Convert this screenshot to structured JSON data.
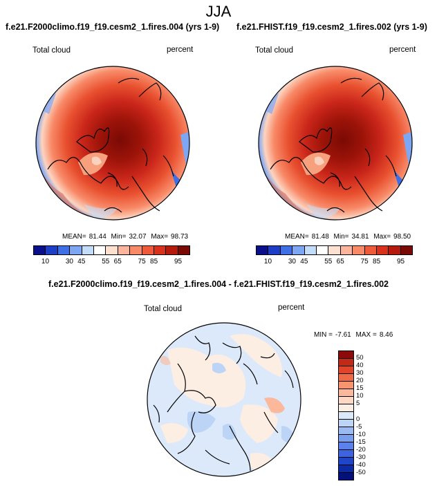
{
  "page": {
    "season": "JJA",
    "diff_title": "f.e21.F2000climo.f19_f19.cesm2_1.fires.004 - f.e21.FHIST.f19_f19.cesm2_1.fires.002"
  },
  "panels": [
    {
      "title": "f.e21.F2000climo.f19_f19.cesm2_1.fires.004 (yrs 1-9)",
      "left_label": "Total cloud",
      "right_label": "percent",
      "mean_label": "MEAN=",
      "mean_value": "81.44",
      "min_label": "Min=",
      "min_value": "32.07",
      "max_label": "Max=",
      "max_value": "98.73"
    },
    {
      "title": "f.e21.FHIST.f19_f19.cesm2_1.fires.002 (yrs 1-9)",
      "left_label": "Total cloud",
      "right_label": "percent",
      "mean_label": "MEAN=",
      "mean_value": "81.48",
      "min_label": "Min=",
      "min_value": "34.81",
      "max_label": "Max=",
      "max_value": "98.50"
    }
  ],
  "diff_panel": {
    "left_label": "Total cloud",
    "right_label": "percent",
    "min_label": "MIN =",
    "min_value": "-7.61",
    "max_label": "MAX =",
    "max_value": "8.46"
  },
  "colorbar_main": {
    "colors": [
      "#0a0f8c",
      "#1c3fc6",
      "#3f6fe4",
      "#7da6f3",
      "#c3dcf9",
      "#ffffff",
      "#fde0d0",
      "#fcb59c",
      "#f88a68",
      "#ee5a3a",
      "#d9311c",
      "#b51a0d",
      "#7a0a05"
    ],
    "tick_labels": [
      "10",
      "30",
      "45",
      "55",
      "65",
      "75",
      "85",
      "95"
    ]
  },
  "colorbar_diff": {
    "colors_top_to_bottom": [
      "#8c0a0a",
      "#c02a16",
      "#e0442a",
      "#f06a48",
      "#f8956f",
      "#fbb89a",
      "#fdd8c4",
      "#fdeee4",
      "#dbe9fa",
      "#bcd4f6",
      "#9bbaf1",
      "#7a9eee",
      "#5b82ea",
      "#3c64e0",
      "#1f45c9",
      "#0a2aa8",
      "#04117a"
    ],
    "tick_labels": [
      "50",
      "40",
      "30",
      "20",
      "15",
      "10",
      "5",
      "0",
      "-5",
      "-10",
      "-15",
      "-20",
      "-30",
      "-40",
      "-50"
    ]
  },
  "map_icons": [
    "polar-stereographic-map-left",
    "polar-stereographic-map-right",
    "polar-stereographic-map-diff"
  ]
}
